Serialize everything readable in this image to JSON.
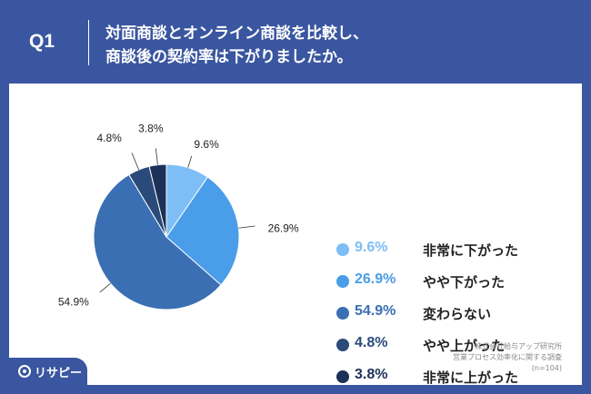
{
  "header": {
    "q_label": "Q1",
    "question_line1": "対面商談とオンライン商談を比較し、",
    "question_line2": "商談後の契約率は下がりましたか。"
  },
  "chart_data": {
    "type": "pie",
    "slices": [
      {
        "label": "非常に下がった",
        "value": 9.6,
        "value_text": "9.6%",
        "color": "#7dbef7"
      },
      {
        "label": "やや下がった",
        "value": 26.9,
        "value_text": "26.9%",
        "color": "#4a9de8"
      },
      {
        "label": "変わらない",
        "value": 54.9,
        "value_text": "54.9%",
        "color": "#3a6fb3"
      },
      {
        "label": "やや上がった",
        "value": 4.8,
        "value_text": "4.8%",
        "color": "#2a4a7a"
      },
      {
        "label": "非常に上がった",
        "value": 3.8,
        "value_text": "3.8%",
        "color": "#1b3158"
      }
    ]
  },
  "source": {
    "line1": "株式会社給与アップ研究所",
    "line2": "営業プロセス効率化に関する調査",
    "line3": "(n=104)"
  },
  "logo": {
    "text": "リサピー"
  }
}
